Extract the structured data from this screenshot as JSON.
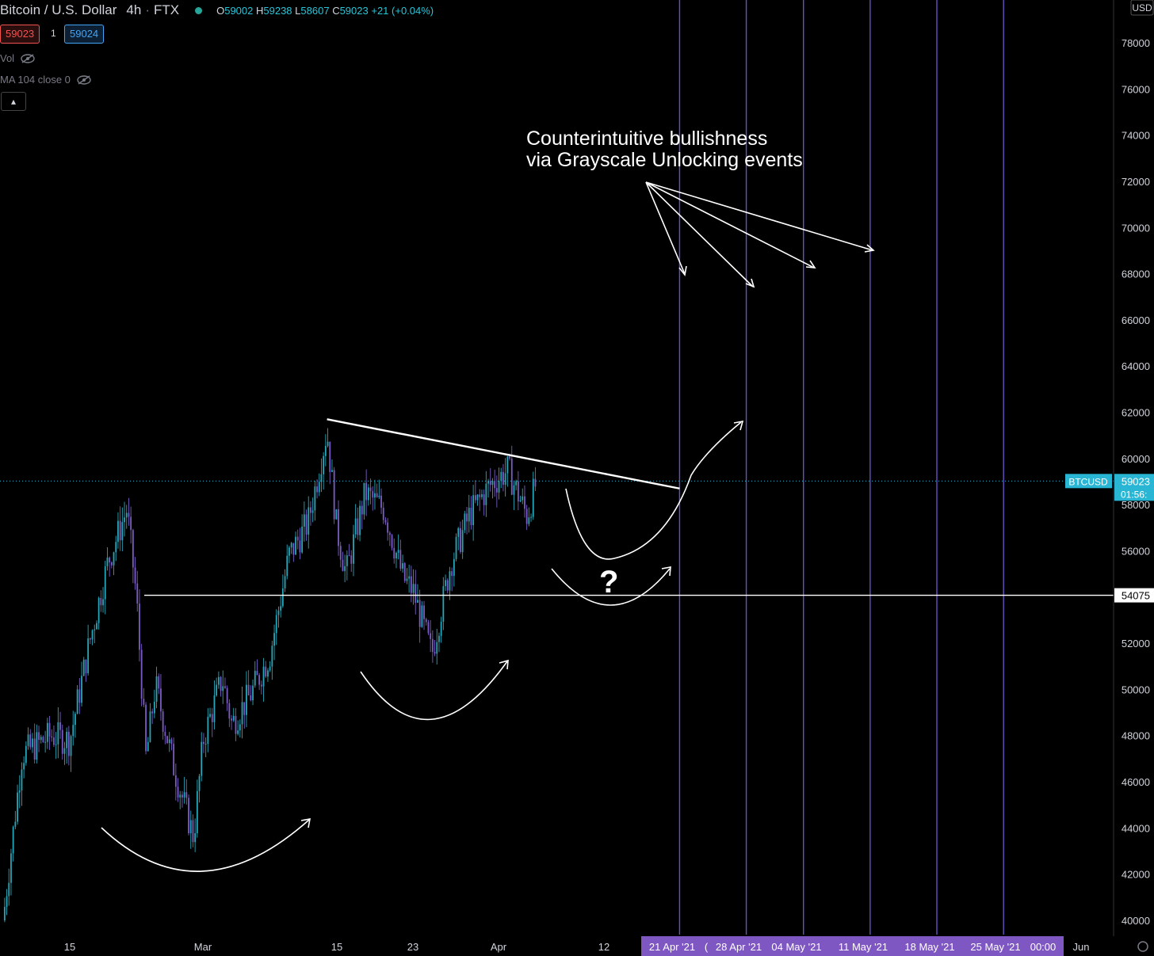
{
  "header": {
    "symbol": "Bitcoin / U.S. Dollar",
    "interval": "4h",
    "exchange": "FTX",
    "o_label": "O",
    "o_value": "59002",
    "h_label": "H",
    "h_value": "59238",
    "l_label": "L",
    "l_value": "58607",
    "c_label": "C",
    "c_value": "59023",
    "change": "+21 (+0.04%)"
  },
  "trade": {
    "sell_price": "59023",
    "quantity": "1",
    "buy_price": "59024"
  },
  "indicators": [
    {
      "label": "Vol"
    },
    {
      "label": "MA 104 close 0"
    }
  ],
  "annotation": {
    "text": "Counterintuitive bullishness\nvia Grayscale Unlocking events"
  },
  "question_mark": "?",
  "colors": {
    "background": "#000000",
    "candle_up": "#26a6b8",
    "candle_down": "#7b5cc4",
    "event_line": "#6b4fc7",
    "date_highlight": "#7e57c2",
    "price_tag": "#29b6d4"
  },
  "chart_data": {
    "type": "candlestick",
    "title": "Bitcoin / U.S. Dollar",
    "interval": "4h",
    "currency_label": "USD",
    "y_axis": {
      "ticks": [
        40000,
        42000,
        44000,
        46000,
        48000,
        50000,
        52000,
        54000,
        56000,
        58000,
        60000,
        62000,
        64000,
        66000,
        68000,
        70000,
        72000,
        74000,
        76000,
        78000
      ]
    },
    "x_axis_labels": [
      "15",
      "Mar",
      "15",
      "23",
      "Apr",
      "12",
      "21 Apr '21",
      "(",
      "28 Apr '21",
      "04 May '21",
      "11 May '21",
      "18 May '21",
      "25 May '21",
      "00:00",
      "Jun"
    ],
    "highlighted_dates": [
      "21 Apr '21",
      "28 Apr '21",
      "04 May '21",
      "11 May '21",
      "18 May '21",
      "25 May '21",
      "00:00"
    ],
    "last_price": {
      "label": "BTCUSD",
      "value": "59023",
      "countdown": "01:56:"
    },
    "horizontal_level": {
      "value": 54075,
      "label": "54075"
    },
    "price_path": [
      {
        "date": "2021-02-08",
        "close": 40000
      },
      {
        "date": "2021-02-10",
        "close": 47200
      },
      {
        "date": "2021-02-13",
        "close": 48000
      },
      {
        "date": "2021-02-15",
        "close": 47800
      },
      {
        "date": "2021-02-17",
        "close": 51900
      },
      {
        "date": "2021-02-19",
        "close": 55500
      },
      {
        "date": "2021-02-21",
        "close": 57800
      },
      {
        "date": "2021-02-22",
        "close": 54000
      },
      {
        "date": "2021-02-23",
        "close": 47000
      },
      {
        "date": "2021-02-24",
        "close": 50200
      },
      {
        "date": "2021-02-26",
        "close": 46500
      },
      {
        "date": "2021-02-28",
        "close": 43600
      },
      {
        "date": "2021-03-01",
        "close": 47800
      },
      {
        "date": "2021-03-03",
        "close": 50500
      },
      {
        "date": "2021-03-04",
        "close": 48500
      },
      {
        "date": "2021-03-06",
        "close": 49800
      },
      {
        "date": "2021-03-08",
        "close": 51500
      },
      {
        "date": "2021-03-10",
        "close": 55800
      },
      {
        "date": "2021-03-12",
        "close": 57200
      },
      {
        "date": "2021-03-14",
        "close": 61200
      },
      {
        "date": "2021-03-15",
        "close": 57000
      },
      {
        "date": "2021-03-16",
        "close": 55000
      },
      {
        "date": "2021-03-18",
        "close": 58500
      },
      {
        "date": "2021-03-20",
        "close": 57800
      },
      {
        "date": "2021-03-22",
        "close": 54800
      },
      {
        "date": "2021-03-23",
        "close": 54300
      },
      {
        "date": "2021-03-25",
        "close": 51500
      },
      {
        "date": "2021-03-27",
        "close": 55500
      },
      {
        "date": "2021-03-29",
        "close": 57600
      },
      {
        "date": "2021-03-31",
        "close": 58800
      },
      {
        "date": "2021-04-02",
        "close": 59500
      },
      {
        "date": "2021-04-04",
        "close": 57500
      },
      {
        "date": "2021-04-05",
        "close": 59023
      }
    ],
    "drawings": {
      "trendline": {
        "from": {
          "date": "2021-03-14",
          "price": 61700
        },
        "to": {
          "date": "2021-04-20",
          "price": 58700
        }
      },
      "event_lines": [
        "2021-04-20",
        "2021-04-27",
        "2021-05-03",
        "2021-05-10",
        "2021-05-17",
        "2021-05-24"
      ]
    }
  }
}
